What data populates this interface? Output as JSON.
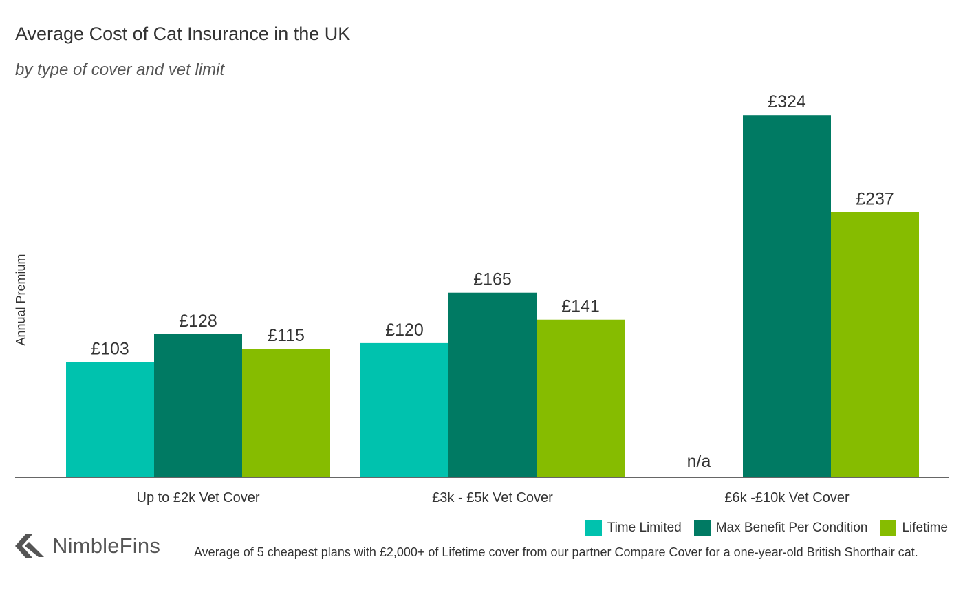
{
  "header": {
    "title": "Average Cost of Cat Insurance in the UK",
    "subtitle": "by type of cover and vet limit"
  },
  "chart_data": {
    "type": "bar",
    "title": "Average Cost of Cat Insurance in the UK",
    "subtitle": "by type of cover and vet limit",
    "xlabel": "",
    "ylabel": "Annual Premium",
    "ylim": [
      0,
      360
    ],
    "grid": false,
    "categories": [
      "Up to £2k Vet Cover",
      "£3k - £5k Vet Cover",
      "£6k -£10k Vet Cover"
    ],
    "series": [
      {
        "name": "Time Limited",
        "color": "#00C2AE",
        "values": [
          103,
          120,
          null
        ],
        "labels": [
          "£103",
          "£120",
          "n/a"
        ]
      },
      {
        "name": "Max Benefit Per Condition",
        "color": "#007A63",
        "values": [
          128,
          165,
          324
        ],
        "labels": [
          "£128",
          "£165",
          "£324"
        ]
      },
      {
        "name": "Lifetime",
        "color": "#86BC00",
        "values": [
          115,
          141,
          237
        ],
        "labels": [
          "£115",
          "£141",
          "£237"
        ]
      }
    ],
    "legend_position": "bottom-right"
  },
  "legend": {
    "items": [
      {
        "label": "Time Limited",
        "color": "#00C2AE"
      },
      {
        "label": "Max Benefit Per Condition",
        "color": "#007A63"
      },
      {
        "label": "Lifetime",
        "color": "#86BC00"
      }
    ]
  },
  "brand": {
    "name": "NimbleFins",
    "icon": "nimblefins-chevron-icon",
    "color": "#555555"
  },
  "footnote": "Average of 5 cheapest plans with £2,000+ of Lifetime cover from our partner Compare Cover for a one-year-old British Shorthair cat."
}
